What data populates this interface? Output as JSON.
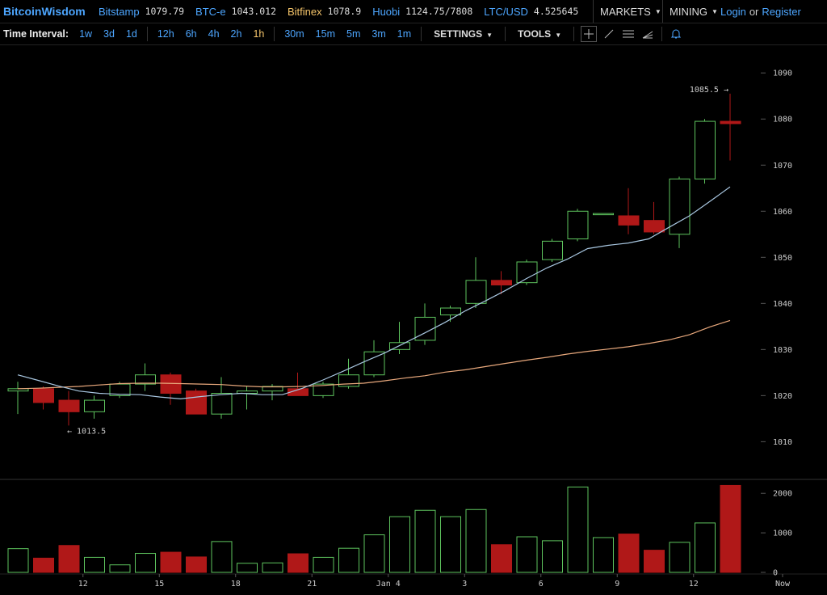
{
  "header": {
    "logo": "BitcoinWisdom",
    "exchanges": [
      {
        "name": "Bitstamp",
        "price": "1079.79",
        "highlight": false
      },
      {
        "name": "BTC-e",
        "price": "1043.012",
        "highlight": false
      },
      {
        "name": "Bitfinex",
        "price": "1078.9",
        "highlight": true
      },
      {
        "name": "Huobi",
        "price": "1124.75/7808",
        "highlight": false
      },
      {
        "name": "LTC/USD",
        "price": "4.525645",
        "highlight": false
      }
    ],
    "markets_label": "MARKETS",
    "mining_label": "MINING",
    "login_label": "Login",
    "or_label": "or",
    "register_label": "Register"
  },
  "toolbar": {
    "time_interval_label": "Time Interval:",
    "intervals": [
      "1w",
      "3d",
      "1d",
      "12h",
      "6h",
      "4h",
      "2h",
      "1h",
      "30m",
      "15m",
      "5m",
      "3m",
      "1m"
    ],
    "active_interval": "1h",
    "settings_label": "SETTINGS",
    "tools_label": "TOOLS"
  },
  "colors": {
    "up": "#5ec45e",
    "down": "#b01818",
    "ma_short": "#a8c6e0",
    "ma_long": "#e8a87c",
    "link": "#4da6ff",
    "active": "#f7c66b"
  },
  "chart_data": {
    "type": "candlestick",
    "price_ylim": [
      1002,
      1096
    ],
    "price_ticks": [
      1010,
      1020,
      1030,
      1040,
      1050,
      1060,
      1070,
      1080,
      1090
    ],
    "volume_ylim": [
      0,
      2250
    ],
    "volume_ticks": [
      0,
      1000,
      2000
    ],
    "x_ticks": [
      {
        "label": "12",
        "index": 3
      },
      {
        "label": "15",
        "index": 6
      },
      {
        "label": "18",
        "index": 9
      },
      {
        "label": "21",
        "index": 12
      },
      {
        "label": "Jan 4",
        "index": 15
      },
      {
        "label": "3",
        "index": 18
      },
      {
        "label": "6",
        "index": 21
      },
      {
        "label": "9",
        "index": 24
      },
      {
        "label": "12",
        "index": 27
      },
      {
        "label": "Now",
        "index": 30
      }
    ],
    "candles": [
      {
        "o": 1021,
        "h": 1023,
        "l": 1016,
        "c": 1021.5,
        "v": 600
      },
      {
        "o": 1021.5,
        "h": 1022,
        "l": 1017,
        "c": 1018.5,
        "v": 360
      },
      {
        "o": 1019,
        "h": 1021,
        "l": 1013.5,
        "c": 1016.5,
        "v": 680
      },
      {
        "o": 1016.5,
        "h": 1020,
        "l": 1015,
        "c": 1019,
        "v": 380
      },
      {
        "o": 1020,
        "h": 1023,
        "l": 1019.5,
        "c": 1022.5,
        "v": 190
      },
      {
        "o": 1022.5,
        "h": 1027,
        "l": 1021,
        "c": 1024.5,
        "v": 480
      },
      {
        "o": 1024.5,
        "h": 1025,
        "l": 1018,
        "c": 1020.5,
        "v": 510
      },
      {
        "o": 1021,
        "h": 1021.5,
        "l": 1016,
        "c": 1016,
        "v": 390
      },
      {
        "o": 1016,
        "h": 1024,
        "l": 1015,
        "c": 1020.5,
        "v": 780
      },
      {
        "o": 1020.5,
        "h": 1022,
        "l": 1017,
        "c": 1021,
        "v": 230
      },
      {
        "o": 1021,
        "h": 1022.5,
        "l": 1019,
        "c": 1022,
        "v": 240
      },
      {
        "o": 1021.5,
        "h": 1025,
        "l": 1020,
        "c": 1020,
        "v": 470
      },
      {
        "o": 1020,
        "h": 1023,
        "l": 1019.5,
        "c": 1022.5,
        "v": 380
      },
      {
        "o": 1022,
        "h": 1028,
        "l": 1021.5,
        "c": 1024.5,
        "v": 610
      },
      {
        "o": 1024.5,
        "h": 1032,
        "l": 1024,
        "c": 1029.5,
        "v": 950
      },
      {
        "o": 1030,
        "h": 1036,
        "l": 1029,
        "c": 1031.5,
        "v": 1410
      },
      {
        "o": 1032,
        "h": 1040,
        "l": 1031,
        "c": 1037,
        "v": 1570
      },
      {
        "o": 1037.5,
        "h": 1039.5,
        "l": 1036,
        "c": 1039,
        "v": 1410
      },
      {
        "o": 1040,
        "h": 1050,
        "l": 1039,
        "c": 1045,
        "v": 1590
      },
      {
        "o": 1045,
        "h": 1047,
        "l": 1042,
        "c": 1044,
        "v": 700
      },
      {
        "o": 1044.5,
        "h": 1049.5,
        "l": 1044,
        "c": 1049,
        "v": 900
      },
      {
        "o": 1049.5,
        "h": 1054,
        "l": 1049,
        "c": 1053.5,
        "v": 800
      },
      {
        "o": 1054,
        "h": 1060.5,
        "l": 1053.5,
        "c": 1060,
        "v": 2160
      },
      {
        "o": 1059.5,
        "h": 1059.5,
        "l": 1059.5,
        "c": 1059.5,
        "v": 880
      },
      {
        "o": 1059,
        "h": 1065,
        "l": 1055,
        "c": 1057,
        "v": 970
      },
      {
        "o": 1058,
        "h": 1062,
        "l": 1055,
        "c": 1055.5,
        "v": 560
      },
      {
        "o": 1055,
        "h": 1067.5,
        "l": 1052,
        "c": 1067,
        "v": 760
      },
      {
        "o": 1067,
        "h": 1080,
        "l": 1066,
        "c": 1079.5,
        "v": 1250
      },
      {
        "o": 1079.5,
        "h": 1085.5,
        "l": 1071,
        "c": 1079,
        "v": 2200
      }
    ],
    "ma_short": [
      1024.5,
      1023.3,
      1022.1,
      1021,
      1020.5,
      1020.3,
      1020.2,
      1019.7,
      1019.3,
      1019.8,
      1020.2,
      1020.5,
      1020.2,
      1020.2,
      1021.6,
      1023.4,
      1025.3,
      1027.3,
      1029.2,
      1031.4,
      1033.6,
      1035.9,
      1038.4,
      1040.6,
      1042.9,
      1045.4,
      1047.7,
      1049.6,
      1051.9,
      1052.6,
      1053.1,
      1054,
      1056.5,
      1059,
      1062.1,
      1065.3
    ],
    "ma_long": [
      1021.5,
      1021.6,
      1021.8,
      1022,
      1022.3,
      1022.6,
      1022.7,
      1022.7,
      1022.6,
      1022.5,
      1022.4,
      1022.1,
      1021.9,
      1021.9,
      1022,
      1022.2,
      1022.5,
      1022.7,
      1023.2,
      1023.8,
      1024.3,
      1025.1,
      1025.6,
      1026.3,
      1027,
      1027.7,
      1028.3,
      1029,
      1029.6,
      1030.1,
      1030.6,
      1031.3,
      1032.1,
      1033.2,
      1034.9,
      1036.3
    ],
    "annotations": [
      {
        "text": "← 1013.5",
        "index": 2,
        "price": 1013.5,
        "side": "right"
      },
      {
        "text": "1085.5 →",
        "index": 28,
        "price": 1085.5,
        "side": "left"
      }
    ]
  }
}
